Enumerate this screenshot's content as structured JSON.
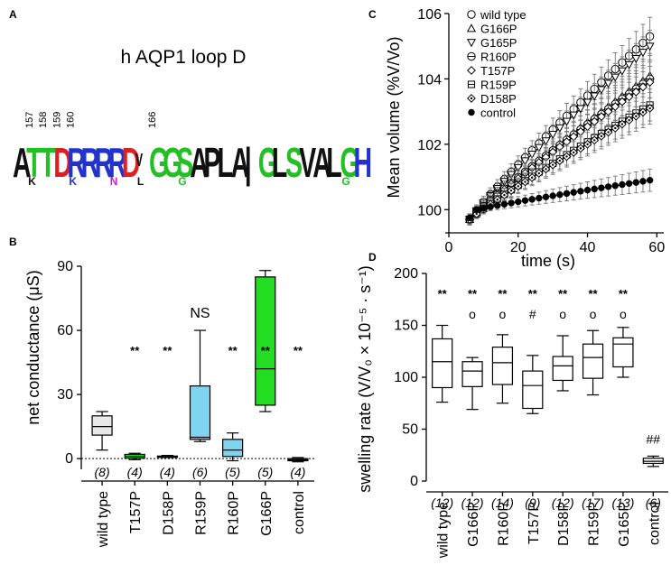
{
  "panels": {
    "A": {
      "letter": "A",
      "title": "h AQP1 loop D",
      "positions": [
        "157",
        "158",
        "159",
        "160",
        "166"
      ],
      "logo": [
        {
          "ch": "A",
          "color": "#111111",
          "main": true
        },
        {
          "ch": "T",
          "color": "#22c022",
          "main": true
        },
        {
          "ch": "T",
          "color": "#22c022",
          "main": true
        },
        {
          "ch": "D",
          "color": "#e02020",
          "main": true
        },
        {
          "ch": "R",
          "color": "#2233cc",
          "main": true
        },
        {
          "ch": "R",
          "color": "#2233cc",
          "main": true
        },
        {
          "ch": "R",
          "color": "#2233cc",
          "main": true
        },
        {
          "ch": "R",
          "color": "#2233cc",
          "main": true
        },
        {
          "ch": "D",
          "color": "#e02020",
          "main": true
        },
        {
          "ch": "V",
          "color": "#111111",
          "main": false
        },
        {
          "ch": "G",
          "color": "#22c022",
          "main": true
        },
        {
          "ch": "G",
          "color": "#22c022",
          "main": true
        },
        {
          "ch": "S",
          "color": "#22c022",
          "main": true
        },
        {
          "ch": "A",
          "color": "#111111",
          "main": true
        },
        {
          "ch": "P",
          "color": "#111111",
          "main": true
        },
        {
          "ch": "L",
          "color": "#111111",
          "main": true
        },
        {
          "ch": "A",
          "color": "#111111",
          "main": true
        },
        {
          "ch": "|",
          "color": "#111111",
          "main": true
        },
        {
          "ch": "G",
          "color": "#22c022",
          "main": true
        },
        {
          "ch": "L",
          "color": "#111111",
          "main": true
        },
        {
          "ch": "S",
          "color": "#22c022",
          "main": true
        },
        {
          "ch": "V",
          "color": "#111111",
          "main": true
        },
        {
          "ch": "A",
          "color": "#111111",
          "main": true
        },
        {
          "ch": "L",
          "color": "#111111",
          "main": true
        },
        {
          "ch": "G",
          "color": "#22c022",
          "main": true
        },
        {
          "ch": "H",
          "color": "#2233cc",
          "main": true
        }
      ],
      "minor_letters": [
        {
          "ch": "K",
          "color": "#111111"
        },
        {
          "ch": "K",
          "color": "#2233cc"
        },
        {
          "ch": "N",
          "color": "#cc22cc"
        },
        {
          "ch": "L",
          "color": "#111111"
        },
        {
          "ch": "G",
          "color": "#22c022"
        },
        {
          "ch": "G",
          "color": "#22c022"
        }
      ]
    },
    "B": {
      "letter": "B",
      "ns_label": "NS"
    },
    "C": {
      "letter": "C"
    },
    "D": {
      "letter": "D"
    }
  },
  "chart_data": [
    {
      "id": "B",
      "type": "box",
      "ylabel": "net conductance (μS)",
      "ylim": [
        -5,
        90
      ],
      "yticks": [
        0,
        30,
        60,
        90
      ],
      "categories": [
        "wild type",
        "T157P",
        "D158P",
        "R159P",
        "R160P",
        "G166P",
        "control"
      ],
      "n": [
        "(8)",
        "(4)",
        "(4)",
        "(6)",
        "(5)",
        "(5)",
        "(4)"
      ],
      "significance": [
        "",
        "**",
        "**",
        "NS",
        "**",
        "**",
        "**"
      ],
      "box": [
        {
          "min": 4,
          "q1": 11,
          "median": 15,
          "q3": 20,
          "max": 22,
          "fill": "#e8e8e8"
        },
        {
          "min": -0.5,
          "q1": 0.2,
          "median": 1,
          "q3": 2,
          "max": 2.5,
          "fill": "#22dd22"
        },
        {
          "min": 0.5,
          "q1": 0.8,
          "median": 1,
          "q3": 1.2,
          "max": 1.5,
          "fill": "#22dd22"
        },
        {
          "min": 8,
          "q1": 9,
          "median": 10,
          "q3": 34,
          "max": 60,
          "fill": "#7fd4f0"
        },
        {
          "min": -1,
          "q1": 1,
          "median": 4,
          "q3": 9,
          "max": 12,
          "fill": "#7fd4f0"
        },
        {
          "min": 22,
          "q1": 25,
          "median": 42,
          "q3": 85,
          "max": 88,
          "fill": "#22dd22"
        },
        {
          "min": -1.5,
          "q1": -1,
          "median": -0.5,
          "q3": 0,
          "max": 0.5,
          "fill": "#e8e8e8"
        }
      ]
    },
    {
      "id": "C",
      "type": "line",
      "xlabel": "time (s)",
      "ylabel": "Mean volume (%V/Vo)",
      "xlim": [
        0,
        62
      ],
      "ylim": [
        99.4,
        106
      ],
      "xticks": [
        0,
        20,
        40,
        60
      ],
      "yticks": [
        100,
        102,
        104,
        106
      ],
      "x": [
        6,
        8,
        10,
        12,
        14,
        16,
        18,
        20,
        22,
        24,
        26,
        28,
        30,
        32,
        34,
        36,
        38,
        40,
        42,
        44,
        46,
        48,
        50,
        52,
        54,
        56,
        58
      ],
      "series": [
        {
          "name": "wild type",
          "marker": "circle",
          "end": 105.3,
          "err": 0.6
        },
        {
          "name": "G166P",
          "marker": "triangle-up",
          "end": 104.1,
          "err": 0.7
        },
        {
          "name": "G165P",
          "marker": "triangle-down",
          "end": 105.0,
          "err": 0.5
        },
        {
          "name": "R160P",
          "marker": "circle-bar",
          "end": 104.0,
          "err": 0.6
        },
        {
          "name": "T157P",
          "marker": "diamond",
          "end": 103.9,
          "err": 0.5
        },
        {
          "name": "R159P",
          "marker": "square",
          "end": 103.2,
          "err": 0.5
        },
        {
          "name": "D158P",
          "marker": "diamond-dot",
          "end": 103.1,
          "err": 0.5
        },
        {
          "name": "control",
          "marker": "filled-circle",
          "end": 100.9,
          "err": 0.35
        }
      ]
    },
    {
      "id": "D",
      "type": "box",
      "ylabel": "swelling rate (V/V₀ × 10⁻⁵ · s⁻¹)",
      "ylim": [
        0,
        200
      ],
      "yticks": [
        0,
        50,
        100,
        150,
        200
      ],
      "categories": [
        "wild type",
        "G166P",
        "R160P",
        "T157P",
        "D158P",
        "R159P",
        "G165P",
        "control"
      ],
      "n": [
        "(12)",
        "(12)",
        "(14)",
        "(9)",
        "(12)",
        "(17)",
        "(13)",
        "(6)"
      ],
      "significance": [
        "**",
        "**",
        "**",
        "**",
        "**",
        "**",
        "**",
        ""
      ],
      "secondary": [
        "",
        "o",
        "o",
        "#",
        "o",
        "o",
        "o",
        "##"
      ],
      "box": [
        {
          "min": 76,
          "q1": 90,
          "median": 115,
          "q3": 137,
          "max": 150
        },
        {
          "min": 69,
          "q1": 91,
          "median": 106,
          "q3": 115,
          "max": 119
        },
        {
          "min": 75,
          "q1": 93,
          "median": 114,
          "q3": 129,
          "max": 141
        },
        {
          "min": 65,
          "q1": 70,
          "median": 92,
          "q3": 106,
          "max": 121
        },
        {
          "min": 87,
          "q1": 97,
          "median": 111,
          "q3": 120,
          "max": 140
        },
        {
          "min": 83,
          "q1": 99,
          "median": 119,
          "q3": 132,
          "max": 145
        },
        {
          "min": 100,
          "q1": 110,
          "median": 132,
          "q3": 138,
          "max": 148
        },
        {
          "min": 14,
          "q1": 17,
          "median": 19,
          "q3": 22,
          "max": 24
        }
      ]
    }
  ]
}
